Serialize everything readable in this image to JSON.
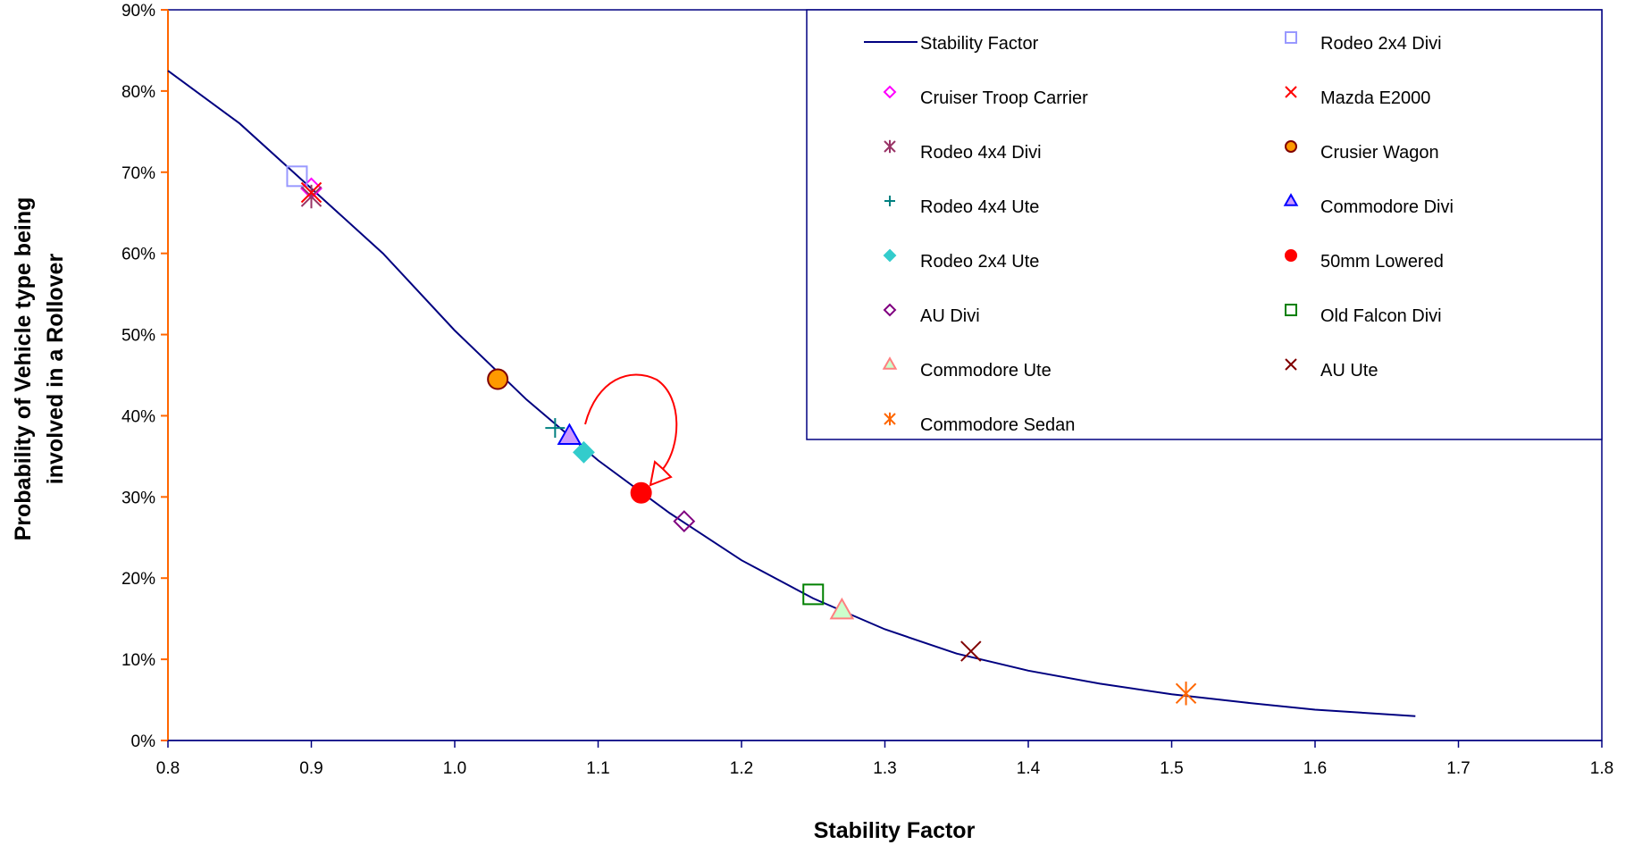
{
  "chart_data": {
    "type": "scatter",
    "title": "",
    "xlabel": "Stability Factor",
    "ylabel_line1": "Probability of Vehicle type being",
    "ylabel_line2": "involved in a Rollover",
    "xlim": [
      0.8,
      1.8
    ],
    "ylim": [
      0,
      0.9
    ],
    "x_ticks": [
      0.8,
      0.9,
      1.0,
      1.1,
      1.2,
      1.3,
      1.4,
      1.5,
      1.6,
      1.7,
      1.8
    ],
    "y_ticks": [
      0,
      0.1,
      0.2,
      0.3,
      0.4,
      0.5,
      0.6,
      0.7,
      0.8,
      0.9
    ],
    "x_tick_labels": [
      "0.8",
      "0.9",
      "1.0",
      "1.1",
      "1.2",
      "1.3",
      "1.4",
      "1.5",
      "1.6",
      "1.7",
      "1.8"
    ],
    "y_tick_labels": [
      "0%",
      "10%",
      "20%",
      "30%",
      "40%",
      "50%",
      "60%",
      "70%",
      "80%",
      "90%"
    ],
    "grid": false,
    "legend_position": "top-right",
    "curve": {
      "name": "Stability Factor",
      "color": "#000080",
      "x": [
        0.8,
        0.85,
        0.9,
        0.95,
        1.0,
        1.05,
        1.1,
        1.15,
        1.2,
        1.25,
        1.3,
        1.35,
        1.4,
        1.45,
        1.5,
        1.55,
        1.6,
        1.67
      ],
      "y": [
        0.825,
        0.76,
        0.68,
        0.6,
        0.505,
        0.42,
        0.345,
        0.28,
        0.222,
        0.175,
        0.137,
        0.107,
        0.086,
        0.07,
        0.057,
        0.047,
        0.038,
        0.03
      ]
    },
    "series": [
      {
        "name": "Cruiser Troop Carrier",
        "marker": "diamond",
        "color": "#ff00ff",
        "fill": "none",
        "x": 0.9,
        "y": 0.68
      },
      {
        "name": "Rodeo 4x4 Divi",
        "marker": "asterisk",
        "color": "#993366",
        "fill": "none",
        "x": 0.9,
        "y": 0.67
      },
      {
        "name": "Rodeo 4x4 Ute",
        "marker": "plus",
        "color": "#008080",
        "fill": "none",
        "x": 1.07,
        "y": 0.385
      },
      {
        "name": "Rodeo 2x4 Ute",
        "marker": "diamond",
        "color": "#33cccc",
        "fill": "#33cccc",
        "x": 1.09,
        "y": 0.355
      },
      {
        "name": "AU Divi",
        "marker": "diamond",
        "color": "#800080",
        "fill": "none",
        "x": 1.16,
        "y": 0.27
      },
      {
        "name": "Commodore Ute",
        "marker": "triangle",
        "color": "#ff8080",
        "fill": "#ccffcc",
        "x": 1.27,
        "y": 0.16
      },
      {
        "name": "Commodore Sedan",
        "marker": "asterisk",
        "color": "#ff6600",
        "fill": "none",
        "x": 1.51,
        "y": 0.058
      },
      {
        "name": "Rodeo 2x4 Divi",
        "marker": "square",
        "color": "#9999ff",
        "fill": "none",
        "x": 0.89,
        "y": 0.695
      },
      {
        "name": "Mazda E2000",
        "marker": "x",
        "color": "#ff0000",
        "fill": "none",
        "x": 0.9,
        "y": 0.675
      },
      {
        "name": "Crusier Wagon",
        "marker": "circle",
        "color": "#800000",
        "fill": "#ff9900",
        "x": 1.03,
        "y": 0.445
      },
      {
        "name": "Commodore Divi",
        "marker": "triangle",
        "color": "#0000ff",
        "fill": "#cc99ff",
        "x": 1.08,
        "y": 0.375
      },
      {
        "name": "50mm Lowered",
        "marker": "circle",
        "color": "#ff0000",
        "fill": "#ff0000",
        "x": 1.13,
        "y": 0.305
      },
      {
        "name": "Old Falcon Divi",
        "marker": "square",
        "color": "#008000",
        "fill": "none",
        "x": 1.25,
        "y": 0.18
      },
      {
        "name": "AU Ute",
        "marker": "x",
        "color": "#800000",
        "fill": "none",
        "x": 1.36,
        "y": 0.11
      }
    ],
    "annotation": {
      "type": "curved-arrow",
      "color": "#ff0000"
    },
    "colors": {
      "y_axis": "#ff6600",
      "plot_border": "#000080"
    }
  }
}
